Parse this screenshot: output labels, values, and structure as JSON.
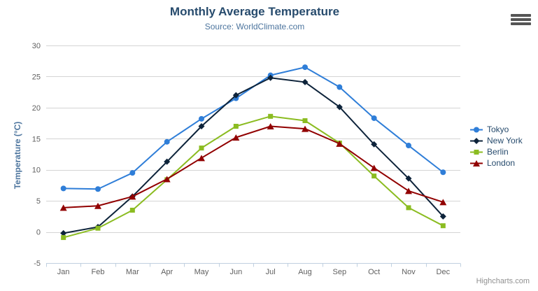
{
  "chart_data": {
    "type": "line",
    "title": "Monthly Average Temperature",
    "subtitle": "Source: WorldClimate.com",
    "categories": [
      "Jan",
      "Feb",
      "Mar",
      "Apr",
      "May",
      "Jun",
      "Jul",
      "Aug",
      "Sep",
      "Oct",
      "Nov",
      "Dec"
    ],
    "xlabel": "",
    "ylabel": "Temperature (°C)",
    "ylim": [
      -5,
      30
    ],
    "y_ticks": [
      -5,
      0,
      5,
      10,
      15,
      20,
      25,
      30
    ],
    "grid": true,
    "legend_position": "right",
    "series": [
      {
        "name": "Tokyo",
        "color": "#2f7ed8",
        "marker": "circle",
        "values": [
          7.0,
          6.9,
          9.5,
          14.5,
          18.2,
          21.5,
          25.2,
          26.5,
          23.3,
          18.3,
          13.9,
          9.6
        ]
      },
      {
        "name": "New York",
        "color": "#0d233a",
        "marker": "diamond",
        "values": [
          -0.2,
          0.8,
          5.7,
          11.3,
          17.0,
          22.0,
          24.8,
          24.1,
          20.1,
          14.1,
          8.6,
          2.5
        ]
      },
      {
        "name": "Berlin",
        "color": "#8bbc21",
        "marker": "square",
        "values": [
          -0.9,
          0.6,
          3.5,
          8.4,
          13.5,
          17.0,
          18.6,
          17.9,
          14.3,
          9.0,
          3.9,
          1.0
        ]
      },
      {
        "name": "London",
        "color": "#910000",
        "marker": "triangle",
        "values": [
          3.9,
          4.2,
          5.7,
          8.5,
          11.9,
          15.2,
          17.0,
          16.6,
          14.2,
          10.3,
          6.6,
          4.8
        ]
      }
    ]
  },
  "colors": {
    "title": "#274b6d",
    "subtitle": "#4d759e",
    "axis_label": "#606060",
    "axis_title": "#4d759e",
    "gridline": "#d4d4d4",
    "axis_line": "#c0d0e0",
    "legend_text": "#274b6d",
    "credits": "#909090",
    "export_icon": "#555555"
  },
  "credits": {
    "label": "Highcharts.com"
  }
}
